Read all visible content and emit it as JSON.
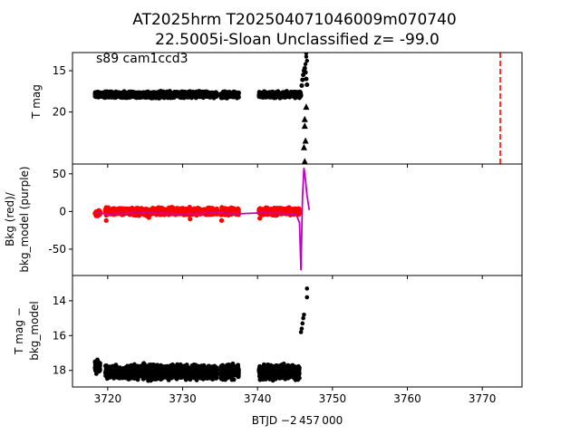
{
  "title": {
    "line1": "AT2025hrm  T202504071046009m070740",
    "line2": "22.5005i-Sloan Unclassified z= -99.0"
  },
  "annotation": "s89 cam1ccd3",
  "xlabel": "BTJD −2 457 000",
  "colors": {
    "points": "#000000",
    "bkg": "#ff0000",
    "bkg_model": "#bf00bf",
    "marker_line": "#ff0000"
  },
  "chart_data": [
    {
      "type": "scatter",
      "panel": "top",
      "ylabel": "T mag",
      "xlim": [
        3715.3,
        3775.3
      ],
      "ylim": [
        26.3,
        12.8
      ],
      "y_inverted": true,
      "xticks": [
        3720,
        3730,
        3740,
        3750,
        3760,
        3770
      ],
      "yticks": [
        15,
        20
      ],
      "segments": [
        {
          "x0": 3718.3,
          "x1": 3734.6,
          "y": 17.9,
          "spread": 0.5
        },
        {
          "x0": 3735.1,
          "x1": 3737.5,
          "y": 17.9,
          "spread": 0.5
        },
        {
          "x0": 3740.2,
          "x1": 3745.8,
          "y": 17.9,
          "spread": 0.5
        }
      ],
      "rise_points": [
        [
          3745.7,
          17.6
        ],
        [
          3745.9,
          16.8
        ],
        [
          3746.0,
          16.1
        ],
        [
          3746.1,
          15.5
        ],
        [
          3746.2,
          15.0
        ],
        [
          3746.3,
          14.7
        ],
        [
          3746.4,
          15.2
        ],
        [
          3746.5,
          16.0
        ],
        [
          3746.6,
          16.7
        ]
      ],
      "peak_points": [
        [
          3746.5,
          12.9
        ],
        [
          3746.5,
          13.3
        ],
        [
          3746.6,
          13.8
        ],
        [
          3746.4,
          14.2
        ]
      ],
      "triangles": [
        [
          3746.3,
          20.9
        ],
        [
          3746.3,
          21.7
        ],
        [
          3746.4,
          23.5
        ],
        [
          3746.2,
          24.3
        ],
        [
          3746.5,
          19.4
        ],
        [
          3746.3,
          26.0
        ]
      ],
      "vline_x": 3772.4
    },
    {
      "type": "scatter",
      "panel": "middle",
      "ylabel_line1": "Bkg (red)/",
      "ylabel_line2": "bkg_model (purple)",
      "xlim": [
        3715.3,
        3775.3
      ],
      "ylim": [
        -85,
        63
      ],
      "yticks": [
        50,
        0,
        -50
      ],
      "bkg_segments": [
        {
          "x0": 3718.3,
          "x1": 3719.0,
          "y": -3,
          "spread": 5
        },
        {
          "x0": 3719.7,
          "x1": 3727.5,
          "y": 0,
          "spread": 6
        },
        {
          "x0": 3727.5,
          "x1": 3734.6,
          "y": 0,
          "spread": 6
        },
        {
          "x0": 3735.1,
          "x1": 3737.5,
          "y": 0,
          "spread": 6
        },
        {
          "x0": 3740.2,
          "x1": 3745.6,
          "y": 0,
          "spread": 6
        }
      ],
      "bkg_dips": [
        [
          3719.8,
          -12
        ],
        [
          3725.5,
          -8
        ],
        [
          3731.0,
          -10
        ],
        [
          3735.2,
          -12
        ],
        [
          3740.3,
          -9
        ]
      ],
      "model_x": [
        3718.3,
        3720,
        3725,
        3730,
        3734.6,
        3737.5,
        3740.2,
        3744.5,
        3745.2,
        3745.6,
        3745.8,
        3746.0,
        3746.2,
        3746.4,
        3746.6,
        3746.9
      ],
      "model_y": [
        -2,
        -3,
        -2,
        -3,
        -2,
        -3,
        -2,
        -3,
        -5,
        -15,
        -78,
        20,
        58,
        42,
        22,
        2
      ]
    },
    {
      "type": "scatter",
      "panel": "bottom",
      "ylabel_line1": "T mag −",
      "ylabel_line2": "bkg_model",
      "xlim": [
        3715.3,
        3775.3
      ],
      "ylim": [
        18.95,
        12.55
      ],
      "y_inverted": true,
      "yticks": [
        14,
        16,
        18
      ],
      "segments": [
        {
          "x0": 3718.3,
          "x1": 3719.0,
          "y": 17.75,
          "spread": 0.55
        },
        {
          "x0": 3719.7,
          "x1": 3734.6,
          "y": 18.1,
          "spread": 0.55
        },
        {
          "x0": 3735.1,
          "x1": 3737.5,
          "y": 18.1,
          "spread": 0.55
        },
        {
          "x0": 3740.2,
          "x1": 3745.6,
          "y": 18.1,
          "spread": 0.55
        }
      ],
      "rise_points": [
        [
          3745.8,
          15.8
        ],
        [
          3745.9,
          15.6
        ],
        [
          3746.0,
          15.3
        ],
        [
          3746.1,
          15.0
        ],
        [
          3746.2,
          14.8
        ],
        [
          3746.6,
          13.3
        ],
        [
          3746.6,
          13.8
        ]
      ]
    }
  ]
}
